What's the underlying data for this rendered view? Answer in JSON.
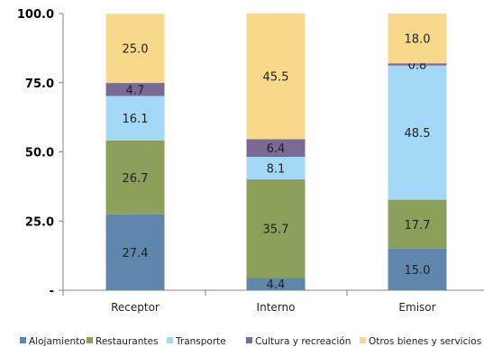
{
  "chart_data": {
    "type": "bar",
    "stacked": true,
    "categories": [
      "Receptor",
      "Interno",
      "Emisor"
    ],
    "series": [
      {
        "name": "Alojamiento",
        "values": [
          27.4,
          4.4,
          15.0
        ],
        "labels": [
          "27.4",
          "4.4",
          "15.0"
        ],
        "color": "#5f87ad"
      },
      {
        "name": "Restaurantes",
        "values": [
          26.7,
          35.7,
          17.7
        ],
        "labels": [
          "26.7",
          "35.7",
          "17.7"
        ],
        "color": "#8da05b"
      },
      {
        "name": "Transporte",
        "values": [
          16.1,
          8.1,
          48.5
        ],
        "labels": [
          "16.1",
          "8.1",
          "48.5"
        ],
        "color": "#a3d8f7"
      },
      {
        "name": "Cultura y recreación",
        "values": [
          4.7,
          6.4,
          0.8
        ],
        "labels": [
          "4.7",
          "6.4",
          "0.8"
        ],
        "color": "#7a6a96"
      },
      {
        "name": "Otros bienes y servicios",
        "values": [
          25.0,
          45.5,
          18.0
        ],
        "labels": [
          "25.0",
          "45.5",
          "18.0"
        ],
        "color": "#f8d98b"
      }
    ],
    "yticks": [
      "-",
      "25.0",
      "50.0",
      "75.0",
      "100.0"
    ],
    "ylim": [
      0,
      100
    ],
    "legend_position": "bottom",
    "grid": false
  }
}
